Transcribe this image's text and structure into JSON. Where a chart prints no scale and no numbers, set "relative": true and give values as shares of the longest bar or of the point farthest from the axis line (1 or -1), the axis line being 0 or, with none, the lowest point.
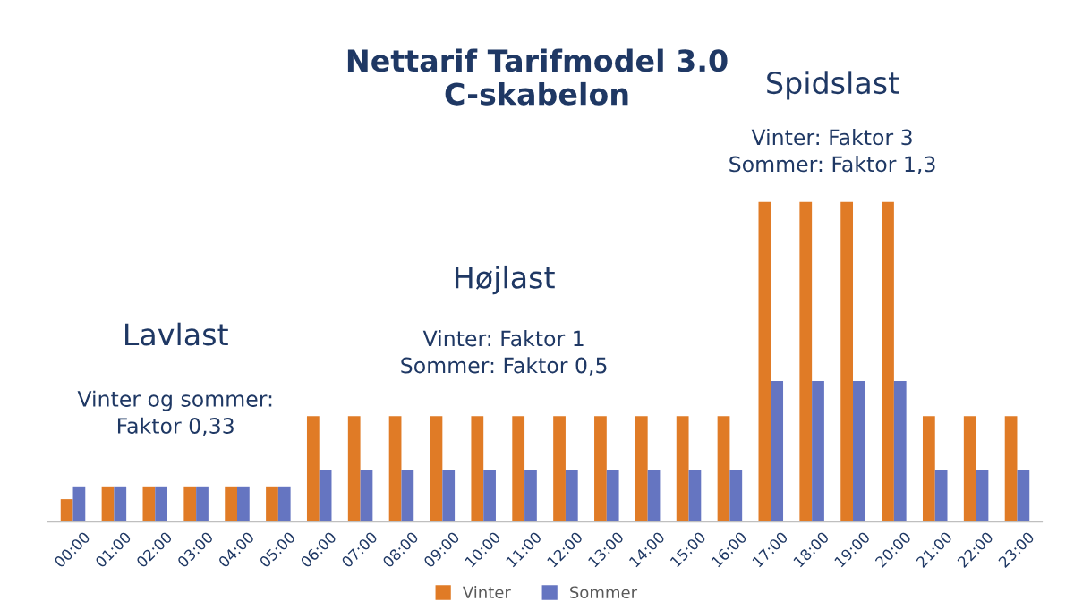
{
  "chart_data": {
    "type": "bar",
    "title": "Nettarif Tarifmodel 3.0\nC-skabelon",
    "relative": true,
    "categories": [
      "00:00",
      "01:00",
      "02:00",
      "03:00",
      "04:00",
      "05:00",
      "06:00",
      "07:00",
      "08:00",
      "09:00",
      "10:00",
      "11:00",
      "12:00",
      "13:00",
      "14:00",
      "15:00",
      "16:00",
      "17:00",
      "18:00",
      "19:00",
      "20:00",
      "21:00",
      "22:00",
      "23:00"
    ],
    "series": [
      {
        "name": "Vinter",
        "color": "#e07b26",
        "values": [
          0.07,
          0.11,
          0.11,
          0.11,
          0.11,
          0.11,
          0.33,
          0.33,
          0.33,
          0.33,
          0.33,
          0.33,
          0.33,
          0.33,
          0.33,
          0.33,
          0.33,
          1,
          1,
          1,
          1,
          0.33,
          0.33,
          0.33
        ]
      },
      {
        "name": "Sommer",
        "color": "#6575c1",
        "values": [
          0.11,
          0.11,
          0.11,
          0.11,
          0.11,
          0.11,
          0.16,
          0.16,
          0.16,
          0.16,
          0.16,
          0.16,
          0.16,
          0.16,
          0.16,
          0.16,
          0.16,
          0.44,
          0.44,
          0.44,
          0.44,
          0.16,
          0.16,
          0.16
        ]
      }
    ],
    "annotations": [
      "Lavlast",
      "Vinter og sommer:\nFaktor 0,33",
      "Højlast",
      "Vinter: Faktor 1\nSommer: Faktor 0,5",
      "Spidslast",
      "Vinter: Faktor 3\nSommer: Faktor 1,3"
    ],
    "legend": "bottom",
    "grid": false
  }
}
